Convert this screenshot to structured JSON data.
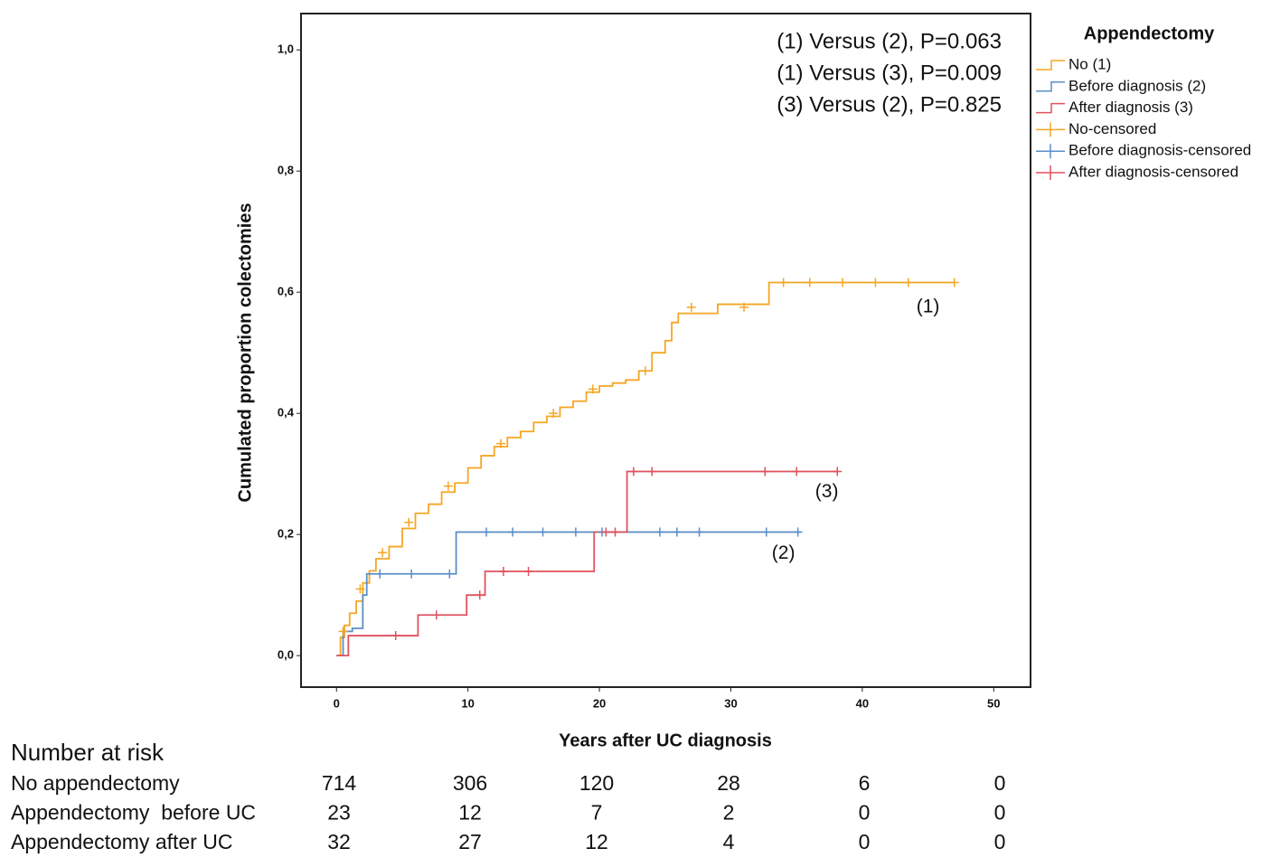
{
  "chart_data": {
    "type": "line",
    "step": true,
    "xlabel": "Years after UC diagnosis",
    "ylabel": "Cumulated proportion colectomies",
    "xlim": [
      -2.7,
      52.8
    ],
    "ylim": [
      -0.052,
      1.06
    ],
    "xticks": [
      0,
      10,
      20,
      30,
      40,
      50
    ],
    "yticks": [
      {
        "value": 0,
        "label": "0,0"
      },
      {
        "value": 0.2,
        "label": "0,2"
      },
      {
        "value": 0.4,
        "label": "0,4"
      },
      {
        "value": 0.6,
        "label": "0,6"
      },
      {
        "value": 0.8,
        "label": "0,8"
      },
      {
        "value": 1,
        "label": "1,0"
      }
    ],
    "legend_title": "Appendectomy",
    "legend_position": "outside right",
    "annotations": [
      "(1) Versus (2), P=0.063",
      "(1) Versus (3), P=0.009",
      "(3) Versus (2), P=0.825"
    ],
    "curve_labels": [
      {
        "text": "(1)",
        "x": 45,
        "y": 0.575
      },
      {
        "text": "(3)",
        "x": 37.3,
        "y": 0.27
      },
      {
        "text": "(2)",
        "x": 34,
        "y": 0.168
      }
    ],
    "series": [
      {
        "name": "No (1)",
        "color": "#f5a623",
        "marker": "line",
        "x": [
          0,
          0.3,
          0.6,
          1,
          1.5,
          2,
          2.5,
          3,
          4,
          5,
          6,
          7,
          8,
          9,
          10,
          11,
          12,
          13,
          14,
          15,
          16,
          17,
          18,
          19,
          20,
          21,
          22,
          23,
          24,
          25,
          25.5,
          26,
          29,
          32.9,
          47
        ],
        "values": [
          0,
          0.03,
          0.05,
          0.07,
          0.09,
          0.12,
          0.14,
          0.16,
          0.18,
          0.21,
          0.235,
          0.25,
          0.27,
          0.285,
          0.31,
          0.33,
          0.345,
          0.36,
          0.37,
          0.385,
          0.395,
          0.41,
          0.42,
          0.435,
          0.445,
          0.45,
          0.455,
          0.47,
          0.5,
          0.52,
          0.55,
          0.565,
          0.58,
          0.616,
          0.616
        ]
      },
      {
        "name": "Before diagnosis (2)",
        "color": "#5b8fc9",
        "marker": "line",
        "x": [
          0,
          0.5,
          1.2,
          2,
          2.3,
          9.1,
          35.3
        ],
        "values": [
          0,
          0.04,
          0.045,
          0.1,
          0.135,
          0.204,
          0.204
        ]
      },
      {
        "name": "After diagnosis (3)",
        "color": "#e0525e",
        "marker": "line",
        "x": [
          0,
          0.9,
          6.2,
          9.9,
          11.3,
          19.6,
          22.1,
          38.2
        ],
        "values": [
          0,
          0.033,
          0.067,
          0.1,
          0.139,
          0.204,
          0.304,
          0.304
        ]
      },
      {
        "name": "No-censored",
        "color": "#f5a623",
        "marker": "plus",
        "x": [
          0.5,
          1.8,
          3.5,
          5.5,
          8.5,
          12.5,
          16.5,
          19.5,
          23.5,
          27,
          31,
          34,
          36,
          38.5,
          41,
          43.5,
          47
        ],
        "values": [
          0.04,
          0.11,
          0.17,
          0.22,
          0.28,
          0.35,
          0.4,
          0.44,
          0.47,
          0.575,
          0.575,
          0.616,
          0.616,
          0.616,
          0.616,
          0.616,
          0.616
        ]
      },
      {
        "name": "Before diagnosis-censored",
        "color": "#5b8fc9",
        "marker": "plus",
        "x": [
          3.3,
          5.7,
          8.6,
          11.4,
          13.4,
          15.7,
          18.2,
          20.2,
          24.6,
          25.9,
          27.6,
          32.7,
          35.1
        ],
        "values": [
          0.135,
          0.135,
          0.135,
          0.204,
          0.204,
          0.204,
          0.204,
          0.204,
          0.204,
          0.204,
          0.204,
          0.204,
          0.204
        ]
      },
      {
        "name": "After diagnosis-censored",
        "color": "#e0525e",
        "marker": "plus",
        "x": [
          4.5,
          7.6,
          10.9,
          12.7,
          14.6,
          20.5,
          21.2,
          22.6,
          24,
          32.6,
          35,
          38.1
        ],
        "values": [
          0.033,
          0.067,
          0.1,
          0.139,
          0.139,
          0.204,
          0.204,
          0.304,
          0.304,
          0.304,
          0.304,
          0.304
        ]
      }
    ],
    "risk_table": {
      "title": "Number at risk",
      "rows": [
        {
          "label": "No appendectomy",
          "values": [
            714,
            306,
            120,
            28,
            6,
            0
          ]
        },
        {
          "label": "Appendectomy  before UC",
          "values": [
            23,
            12,
            7,
            2,
            0,
            0
          ]
        },
        {
          "label": "Appendectomy after UC",
          "values": [
            32,
            27,
            12,
            4,
            0,
            0
          ]
        }
      ]
    }
  }
}
